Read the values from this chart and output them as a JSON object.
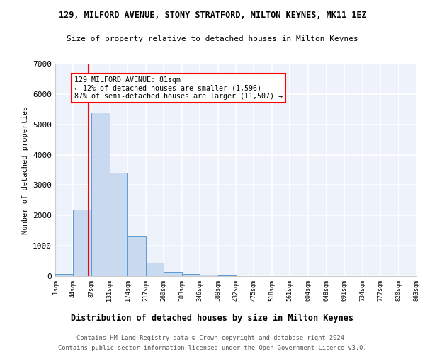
{
  "title": "129, MILFORD AVENUE, STONY STRATFORD, MILTON KEYNES, MK11 1EZ",
  "subtitle": "Size of property relative to detached houses in Milton Keynes",
  "xlabel": "Distribution of detached houses by size in Milton Keynes",
  "ylabel": "Number of detached properties",
  "bar_color": "#c9d9f0",
  "bar_edge_color": "#5b9bd5",
  "bin_edges": [
    1,
    44,
    87,
    131,
    174,
    217,
    260,
    303,
    346,
    389,
    432,
    475,
    518,
    561,
    604,
    648,
    691,
    734,
    777,
    820,
    863
  ],
  "bar_heights": [
    70,
    2200,
    5400,
    3400,
    1300,
    450,
    140,
    80,
    50,
    20,
    10,
    5,
    3,
    2,
    1,
    1,
    0,
    0,
    0,
    0
  ],
  "red_line_x": 81,
  "annotation_text": "129 MILFORD AVENUE: 81sqm\n← 12% of detached houses are smaller (1,596)\n87% of semi-detached houses are larger (11,507) →",
  "annotation_box_color": "white",
  "annotation_box_edge_color": "red",
  "ylim": [
    0,
    7000
  ],
  "yticks": [
    0,
    1000,
    2000,
    3000,
    4000,
    5000,
    6000,
    7000
  ],
  "footer_line1": "Contains HM Land Registry data © Crown copyright and database right 2024.",
  "footer_line2": "Contains public sector information licensed under the Open Government Licence v3.0.",
  "background_color": "#eef2fb",
  "grid_color": "white",
  "tick_labels": [
    "1sqm",
    "44sqm",
    "87sqm",
    "131sqm",
    "174sqm",
    "217sqm",
    "260sqm",
    "303sqm",
    "346sqm",
    "389sqm",
    "432sqm",
    "475sqm",
    "518sqm",
    "561sqm",
    "604sqm",
    "648sqm",
    "691sqm",
    "734sqm",
    "777sqm",
    "820sqm",
    "863sqm"
  ]
}
